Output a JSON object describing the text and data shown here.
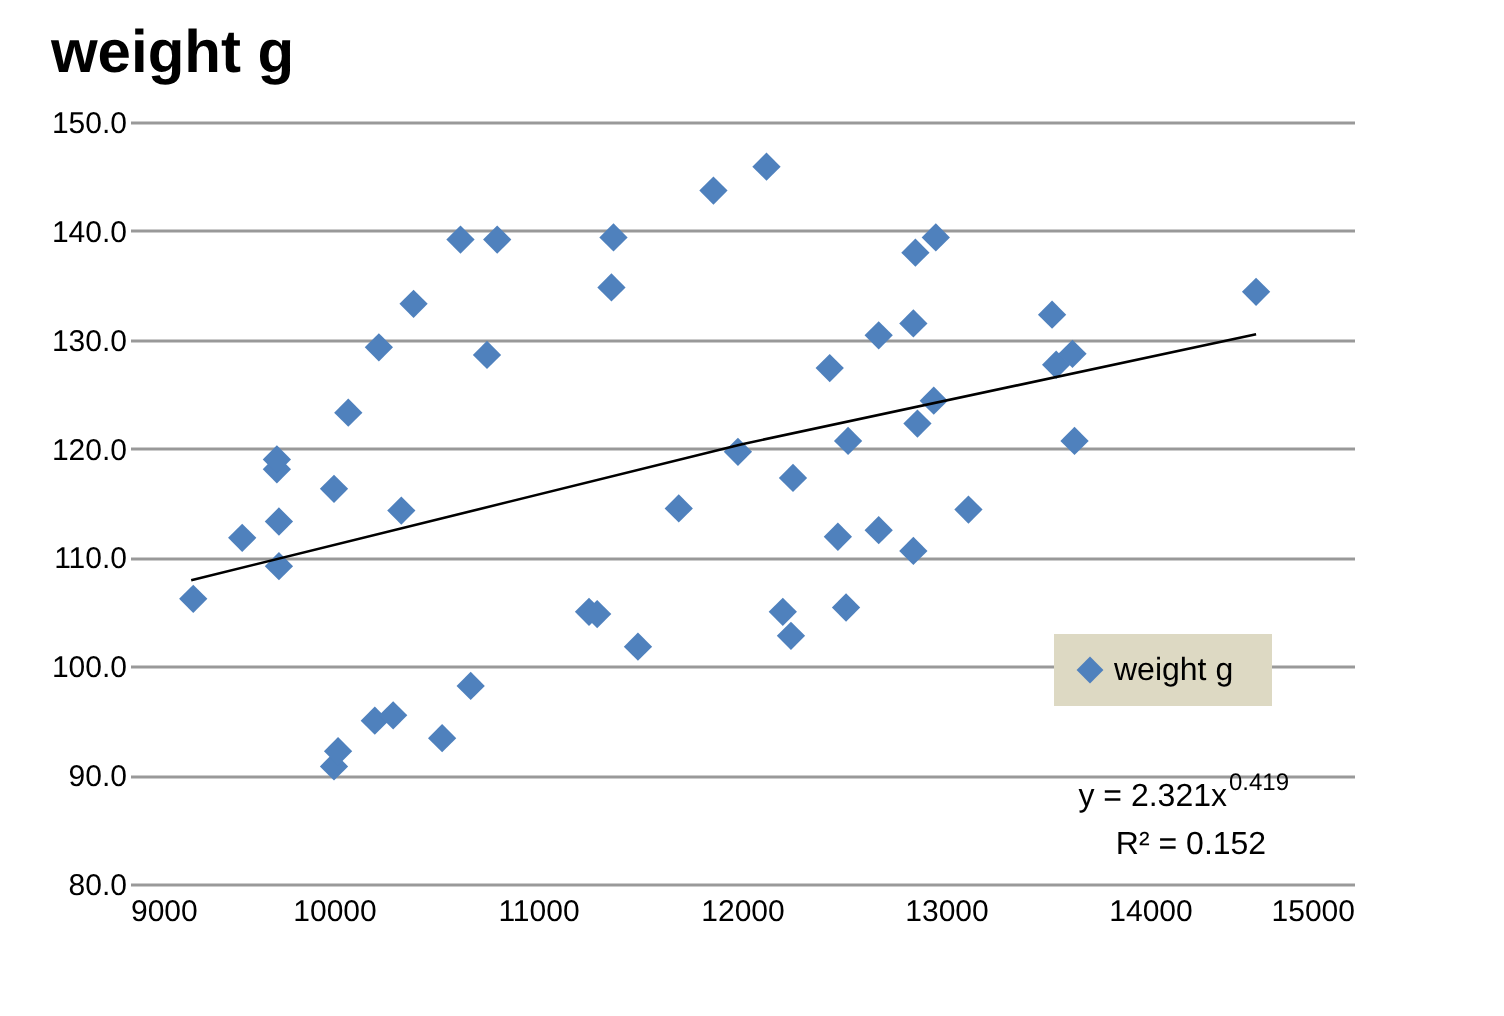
{
  "chart_data": {
    "type": "scatter",
    "title": "weight   g",
    "xlim": [
      9000,
      15000
    ],
    "xticks": [
      9000,
      10000,
      11000,
      12000,
      13000,
      14000,
      15000
    ],
    "ylim": [
      80,
      150
    ],
    "yticks": [
      {
        "value": 80,
        "label": "80.0"
      },
      {
        "value": 90,
        "label": "90.0"
      },
      {
        "value": 100,
        "label": "100.0"
      },
      {
        "value": 110,
        "label": "110.0"
      },
      {
        "value": 120,
        "label": "120.0"
      },
      {
        "value": 130,
        "label": "130.0"
      },
      {
        "value": 140,
        "label": "140.0"
      },
      {
        "value": 150,
        "label": "150.0"
      }
    ],
    "grid": "y",
    "legend": "bottom right",
    "series": [
      {
        "name": "weight   g",
        "color": "#4f81bd",
        "marker": "diamond",
        "x": [
          9310,
          9550,
          9720,
          9720,
          9730,
          9730,
          10000,
          10070,
          10220,
          10390,
          10620,
          10800,
          10750,
          10330,
          10000,
          10020,
          10200,
          10290,
          10530,
          10670,
          11250,
          11290,
          11490,
          11360,
          11370,
          11860,
          12120,
          11690,
          11980,
          12250,
          12200,
          12240,
          12510,
          12430,
          12520,
          12470,
          12670,
          12670,
          12840,
          12840,
          12850,
          12950,
          12860,
          12940,
          13110,
          13520,
          13540,
          13620,
          13630,
          14520
        ],
        "values": [
          106.2,
          111.8,
          118.1,
          119.0,
          113.3,
          109.2,
          116.3,
          123.3,
          129.3,
          133.3,
          139.2,
          139.2,
          128.6,
          114.3,
          90.8,
          92.2,
          95.0,
          95.5,
          93.4,
          98.2,
          105.0,
          104.8,
          101.8,
          134.8,
          139.4,
          143.7,
          145.9,
          114.5,
          119.7,
          117.3,
          105.0,
          102.8,
          105.4,
          127.4,
          120.7,
          111.9,
          112.5,
          130.4,
          131.5,
          110.6,
          138.0,
          139.4,
          122.3,
          124.4,
          114.4,
          132.3,
          127.7,
          128.7,
          120.7,
          134.4
        ]
      },
      {
        "color": "#000000",
        "type": "line",
        "marker": "none",
        "line_style": "solid",
        "x": [
          9300,
          12000,
          14520
        ],
        "values": [
          107.9,
          120.4,
          130.5
        ]
      }
    ],
    "annotations": [
      "y = 2.321x$^{0.419}$",
      "R² = 0.152"
    ]
  }
}
